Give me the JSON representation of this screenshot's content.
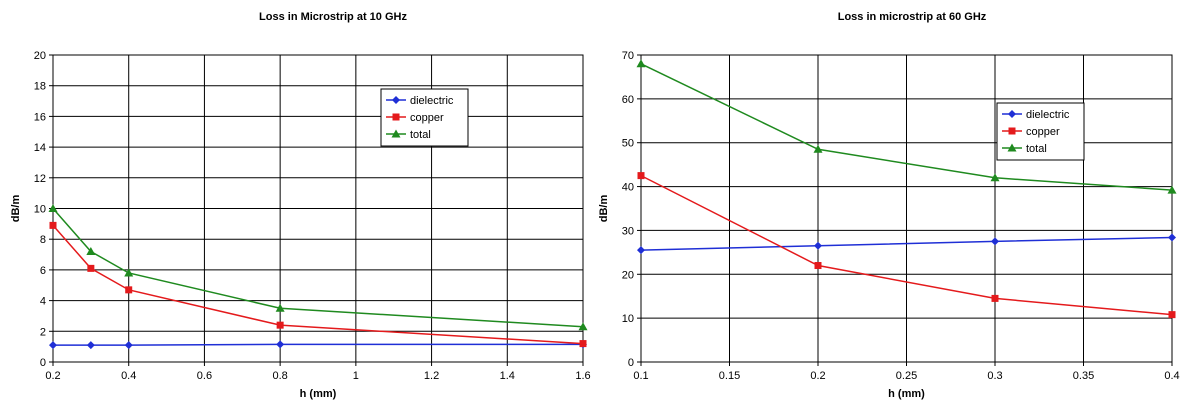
{
  "chart_data": [
    {
      "type": "line",
      "title": "Loss in Microstrip at 10 GHz",
      "xlabel": "h (mm)",
      "ylabel": "dB/m",
      "xlim": [
        0.2,
        1.6
      ],
      "ylim": [
        0,
        20
      ],
      "xticks": [
        0.2,
        0.4,
        0.6,
        0.8,
        1,
        1.2,
        1.4,
        1.6
      ],
      "xtick_labels": [
        "0.2",
        "0.4",
        "0.6",
        "0.8",
        "1",
        "1.2",
        "1.4",
        "1.6"
      ],
      "yticks": [
        0,
        2,
        4,
        6,
        8,
        10,
        12,
        14,
        16,
        18,
        20
      ],
      "ytick_labels": [
        "0",
        "2",
        "4",
        "6",
        "8",
        "10",
        "12",
        "14",
        "16",
        "18",
        "20"
      ],
      "grid": true,
      "legend_position": "top-right",
      "series": [
        {
          "name": "dielectric",
          "color": "#1f2fd6",
          "marker": "diamond",
          "x": [
            0.2,
            0.3,
            0.4,
            0.8,
            1.6
          ],
          "y": [
            1.1,
            1.1,
            1.1,
            1.15,
            1.15
          ]
        },
        {
          "name": "copper",
          "color": "#e41a1c",
          "marker": "square",
          "x": [
            0.2,
            0.3,
            0.4,
            0.8,
            1.6
          ],
          "y": [
            8.9,
            6.1,
            4.7,
            2.4,
            1.2
          ]
        },
        {
          "name": "total",
          "color": "#1f8a1f",
          "marker": "triangle",
          "x": [
            0.2,
            0.3,
            0.4,
            0.8,
            1.6
          ],
          "y": [
            10.0,
            7.2,
            5.8,
            3.5,
            2.3
          ]
        }
      ]
    },
    {
      "type": "line",
      "title": "Loss in microstrip at 60 GHz",
      "xlabel": "h (mm)",
      "ylabel": "dB/m",
      "xlim": [
        0.1,
        0.4
      ],
      "ylim": [
        0,
        70
      ],
      "xticks": [
        0.1,
        0.15,
        0.2,
        0.25,
        0.3,
        0.35,
        0.4
      ],
      "xtick_labels": [
        "0.1",
        "0.15",
        "0.2",
        "0.25",
        "0.3",
        "0.35",
        "0.4"
      ],
      "yticks": [
        0,
        10,
        20,
        30,
        40,
        50,
        60,
        70
      ],
      "ytick_labels": [
        "0",
        "10",
        "20",
        "30",
        "40",
        "50",
        "60",
        "70"
      ],
      "grid": true,
      "legend_position": "top-right",
      "series": [
        {
          "name": "dielectric",
          "color": "#1f2fd6",
          "marker": "diamond",
          "x": [
            0.1,
            0.2,
            0.3,
            0.4
          ],
          "y": [
            25.5,
            26.5,
            27.5,
            28.4
          ]
        },
        {
          "name": "copper",
          "color": "#e41a1c",
          "marker": "square",
          "x": [
            0.1,
            0.2,
            0.3,
            0.4
          ],
          "y": [
            42.5,
            22.0,
            14.5,
            10.8
          ]
        },
        {
          "name": "total",
          "color": "#1f8a1f",
          "marker": "triangle",
          "x": [
            0.1,
            0.2,
            0.3,
            0.4
          ],
          "y": [
            68.0,
            48.5,
            42.0,
            39.2
          ]
        }
      ]
    }
  ]
}
